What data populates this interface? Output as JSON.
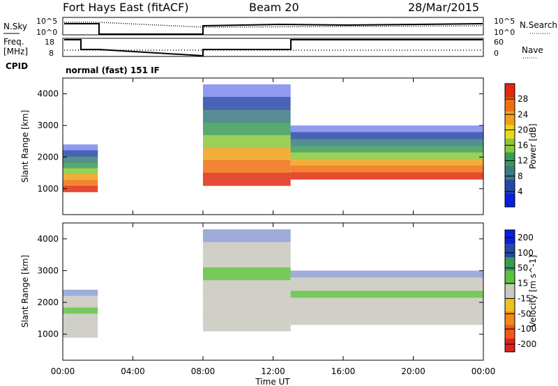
{
  "header": {
    "station": "Fort Hays East (fitACF)",
    "beam": "Beam 20",
    "date": "28/Mar/2015"
  },
  "noise_panel": {
    "left_label": "N.Sky",
    "right_label": "N.Search",
    "left_ticks": [
      "10^5",
      "10^0"
    ],
    "right_ticks": [
      "10^5",
      "10^0"
    ]
  },
  "freq_panel": {
    "left_label_1": "Freq.",
    "left_label_2": "[MHz]",
    "right_label": "Nave",
    "left_ticks": [
      "18",
      "8"
    ],
    "right_ticks": [
      "60",
      "0"
    ]
  },
  "cpid": {
    "label": "CPID",
    "value": "normal (fast) 151 IF"
  },
  "x_ticks": [
    "00:00",
    "04:00",
    "08:00",
    "12:00",
    "16:00",
    "20:00",
    "00:00"
  ],
  "y_ticks": [
    "1000",
    "2000",
    "3000",
    "4000"
  ],
  "colors": {
    "power": [
      "#0a1ee0",
      "#2848a8",
      "#3a7a80",
      "#3a9a58",
      "#8ac83a",
      "#e8d81a",
      "#f0a018",
      "#f07010",
      "#e02a10"
    ],
    "velocity": [
      "#e0201a",
      "#f05818",
      "#f08a18",
      "#f0c020",
      "#c8c8c0",
      "#60c040",
      "#3a9a58",
      "#2848a8",
      "#0a1ee0"
    ]
  },
  "chart_data": [
    {
      "type": "heatmap",
      "name": "power",
      "xlabel": "Time UT",
      "ylabel": "Slant Range [km]",
      "colorbar_label": "Power [dB]",
      "colorbar_ticks": [
        "4",
        "8",
        "12",
        "16",
        "20",
        "24",
        "28"
      ],
      "xlim": [
        "00:00",
        "24:00"
      ],
      "ylim": [
        180,
        4500
      ],
      "echo_regions": [
        {
          "start": "00:00",
          "end": "02:00",
          "range_km": [
            900,
            2400
          ],
          "peak_dB": 28
        },
        {
          "start": "08:00",
          "end": "13:00",
          "range_km": [
            1100,
            4300
          ],
          "peak_dB": 28
        },
        {
          "start": "13:00",
          "end": "24:00",
          "range_km": [
            1300,
            3000
          ],
          "peak_dB": 28
        }
      ]
    },
    {
      "type": "heatmap",
      "name": "velocity",
      "xlabel": "Time UT",
      "ylabel": "Slant Range [km]",
      "colorbar_label": "Velocity [m s^-1]",
      "colorbar_ticks": [
        "-200",
        "-100",
        "-50",
        "-15",
        "15",
        "50",
        "100",
        "200"
      ],
      "xlim": [
        "00:00",
        "24:00"
      ],
      "ylim": [
        180,
        4500
      ],
      "echo_regions": [
        {
          "start": "00:00",
          "end": "02:00",
          "range_km": [
            900,
            2400
          ],
          "dominant_ms": 0
        },
        {
          "start": "08:00",
          "end": "13:00",
          "range_km": [
            1100,
            4300
          ],
          "dominant_ms": 30
        },
        {
          "start": "13:00",
          "end": "24:00",
          "range_km": [
            1300,
            3000
          ],
          "dominant_ms": 0
        }
      ]
    }
  ]
}
